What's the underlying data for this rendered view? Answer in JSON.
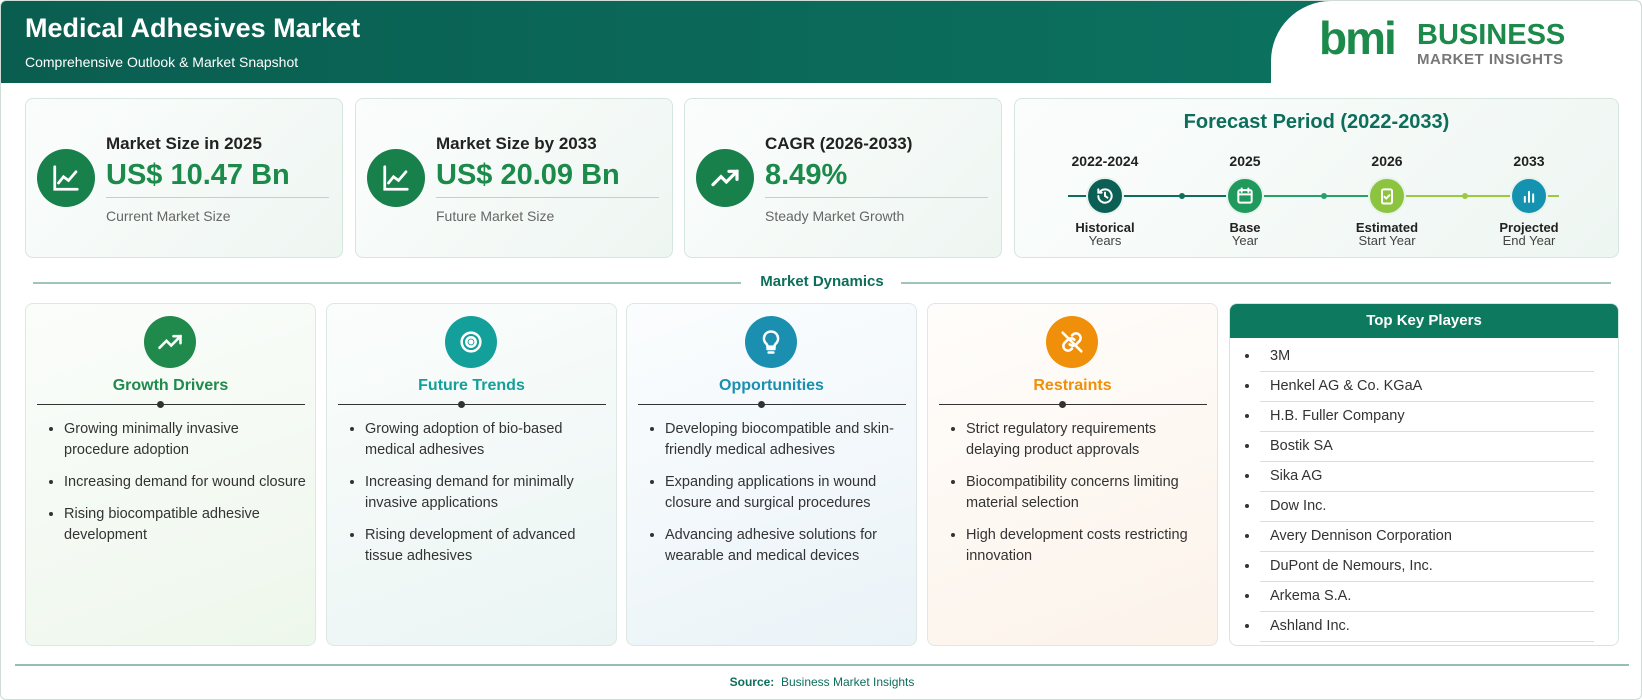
{
  "header": {
    "title": "Medical Adhesives Market",
    "subtitle": "Comprehensive Outlook & Market Snapshot",
    "logo": {
      "mark": "bmi",
      "brand": "BUSINESS",
      "tagline": "MARKET INSIGHTS"
    }
  },
  "metrics": [
    {
      "label": "Market Size in 2025",
      "value": "US$ 10.47 Bn",
      "caption": "Current Market Size"
    },
    {
      "label": "Market Size by 2033",
      "value": "US$ 20.09 Bn",
      "caption": "Future Market Size"
    },
    {
      "label": "CAGR (2026-2033)",
      "value": "8.49%",
      "caption": "Steady Market Growth"
    }
  ],
  "forecast": {
    "title": "Forecast Period (2022-2033)",
    "periods": [
      {
        "years": "2022-2024",
        "label": "Historical",
        "sublabel": "Years"
      },
      {
        "years": "2025",
        "label": "Base",
        "sublabel": "Year"
      },
      {
        "years": "2026",
        "label": "Estimated",
        "sublabel": "Start Year"
      },
      {
        "years": "2033",
        "label": "Projected",
        "sublabel": "End Year"
      }
    ]
  },
  "dynamics": {
    "title": "Market Dynamics",
    "columns": [
      {
        "title": "Growth Drivers",
        "items": [
          "Growing minimally invasive procedure adoption",
          "Increasing demand for wound closure",
          "Rising biocompatible adhesive development"
        ]
      },
      {
        "title": "Future Trends",
        "items": [
          "Growing adoption of bio-based medical adhesives",
          "Increasing demand for minimally invasive applications",
          "Rising development of advanced tissue adhesives"
        ]
      },
      {
        "title": "Opportunities",
        "items": [
          "Developing biocompatible and skin-friendly medical adhesives",
          "Expanding applications in wound closure and surgical procedures",
          "Advancing adhesive solutions for wearable and medical devices"
        ]
      },
      {
        "title": "Restraints",
        "items": [
          "Strict regulatory requirements delaying product approvals",
          "Biocompatibility concerns limiting material selection",
          "High development costs restricting innovation"
        ]
      }
    ]
  },
  "key_players": {
    "title": "Top Key Players",
    "items": [
      "3M",
      "Henkel AG & Co. KGaA",
      "H.B. Fuller Company",
      "Bostik SA",
      "Sika AG",
      "Dow Inc.",
      "Avery Dennison Corporation",
      "DuPont de Nemours, Inc.",
      "Arkema S.A.",
      "Ashland Inc."
    ]
  },
  "footer": {
    "label": "Source:",
    "text": "Business Market Insights"
  }
}
